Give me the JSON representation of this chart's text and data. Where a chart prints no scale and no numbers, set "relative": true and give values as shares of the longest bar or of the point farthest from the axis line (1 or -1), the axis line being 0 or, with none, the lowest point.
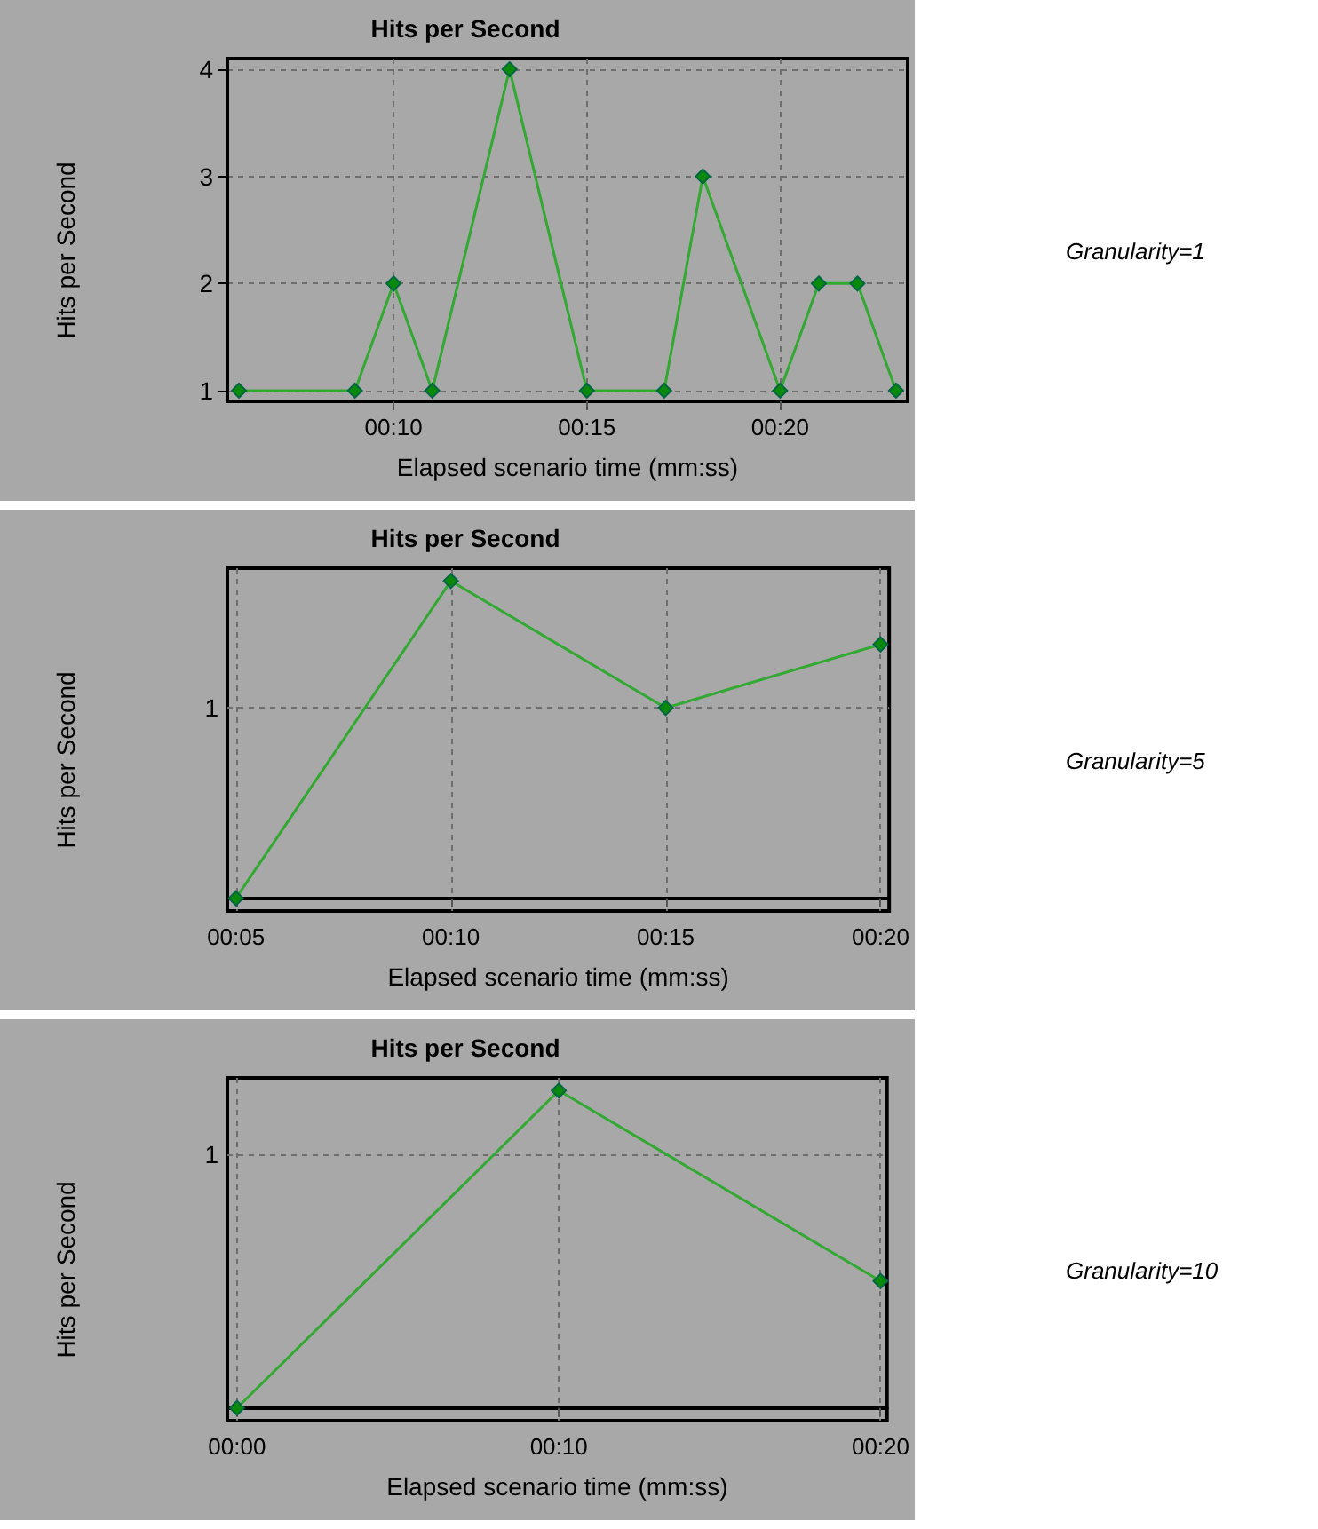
{
  "chart_data": [
    {
      "type": "line",
      "title": "Hits per Second",
      "xlabel": "Elapsed scenario time (mm:ss)",
      "ylabel": "Hits per Second",
      "annotations": [
        "Granularity=1"
      ],
      "x": [
        6,
        9,
        10,
        11,
        13,
        15,
        17,
        18,
        20,
        21,
        22,
        23
      ],
      "series": [
        {
          "color": "#33a833",
          "values": [
            1,
            1,
            2,
            1,
            4,
            1,
            1,
            3,
            1,
            2,
            2,
            1
          ]
        }
      ],
      "xlim": [
        5.7,
        23.3
      ],
      "xticks": [
        {
          "value": 10,
          "label": "00:10"
        },
        {
          "value": 15,
          "label": "00:15"
        },
        {
          "value": 20,
          "label": "00:20"
        }
      ],
      "ylim": [
        0.9,
        4.1
      ],
      "yticks": [
        1,
        2,
        3,
        4
      ],
      "grid": true,
      "marker": "diamond",
      "line_style": "solid"
    },
    {
      "type": "line",
      "title": "Hits per Second",
      "xlabel": "Elapsed scenario time (mm:ss)",
      "ylabel": "Hits per Second",
      "annotations": [
        "Granularity=5"
      ],
      "x": [
        5,
        10,
        15,
        20
      ],
      "series": [
        {
          "color": "#33a833",
          "values": [
            0,
            1,
            0.6,
            0.8
          ]
        }
      ],
      "relative": true,
      "xlim": [
        4.8,
        20.2
      ],
      "xticks": [
        {
          "value": 5,
          "label": "00:05"
        },
        {
          "value": 10,
          "label": "00:10"
        },
        {
          "value": 15,
          "label": "00:15"
        },
        {
          "value": 20,
          "label": "00:20"
        }
      ],
      "ref_lines": [
        {
          "axis": "y",
          "value": 0.6,
          "label": "1"
        }
      ],
      "grid": "x",
      "marker": "diamond",
      "line_style": "solid"
    },
    {
      "type": "line",
      "title": "Hits per Second",
      "xlabel": "Elapsed scenario time (mm:ss)",
      "ylabel": "Hits per Second",
      "annotations": [
        "Granularity=10"
      ],
      "x": [
        0,
        10,
        20
      ],
      "series": [
        {
          "color": "#33a833",
          "values": [
            0,
            1,
            0.4
          ]
        }
      ],
      "relative": true,
      "xlim": [
        -0.3,
        20.2
      ],
      "xticks": [
        {
          "value": 0,
          "label": "00:00"
        },
        {
          "value": 10,
          "label": "00:10"
        },
        {
          "value": 20,
          "label": "00:20"
        }
      ],
      "ref_lines": [
        {
          "axis": "y",
          "value": 0.8,
          "label": "1"
        }
      ],
      "grid": "x",
      "marker": "diamond",
      "line_style": "solid"
    }
  ]
}
